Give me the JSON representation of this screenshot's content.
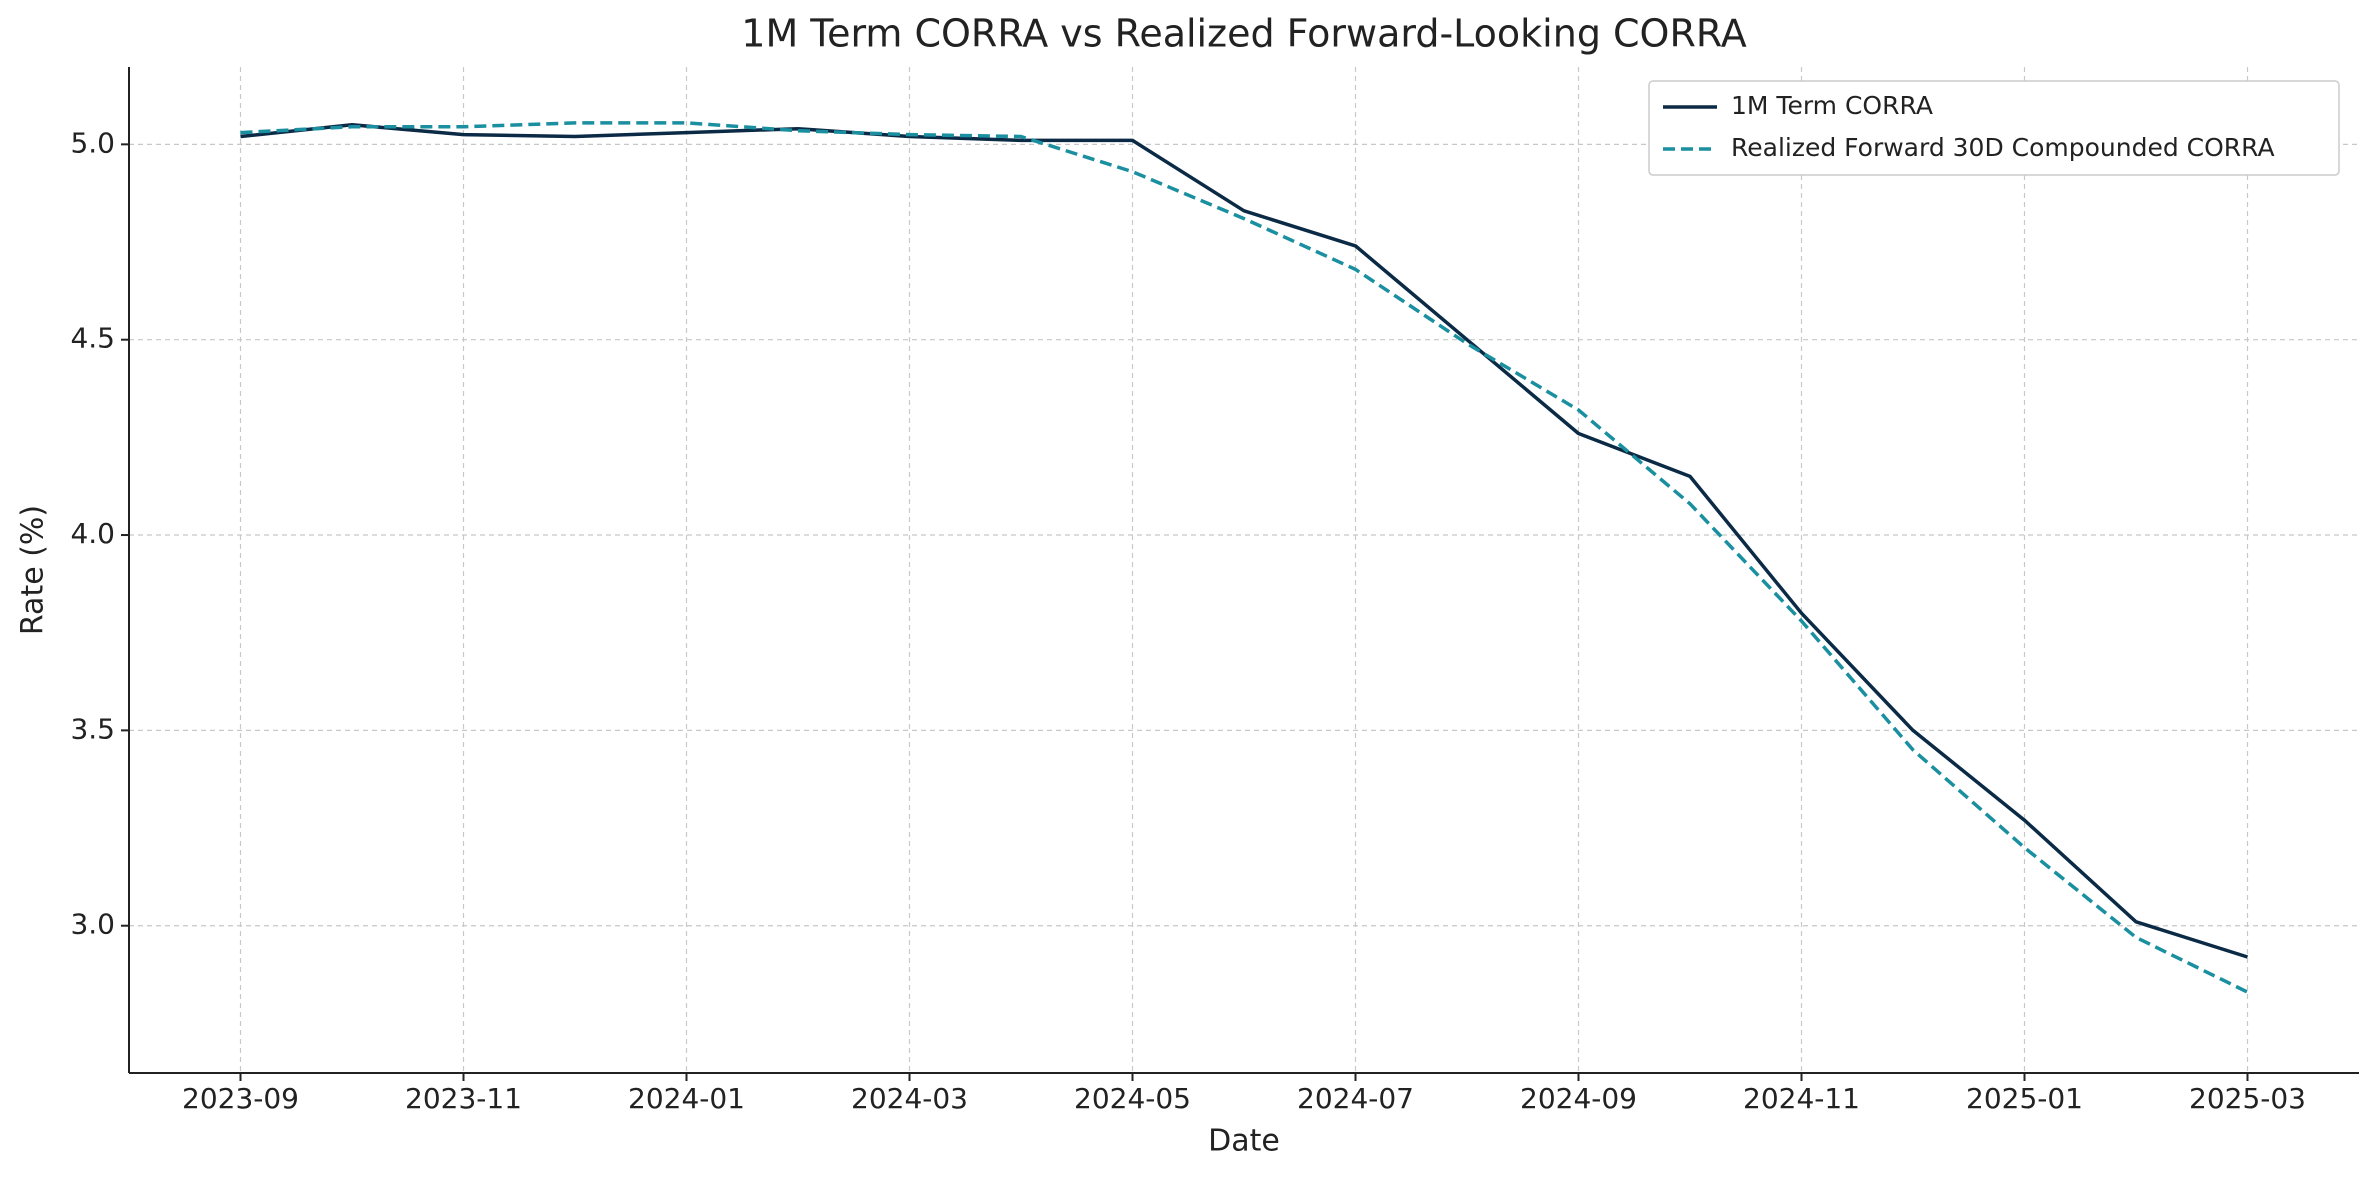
{
  "chart_data": {
    "type": "line",
    "title": "1M Term CORRA vs Realized Forward-Looking CORRA",
    "x_label": "Date",
    "y_label": "Rate (%)",
    "x": [
      "2023-09",
      "2023-10",
      "2023-11",
      "2023-12",
      "2024-01",
      "2024-02",
      "2024-03",
      "2024-04",
      "2024-05",
      "2024-06",
      "2024-07",
      "2024-08",
      "2024-09",
      "2024-10",
      "2024-11",
      "2024-12",
      "2025-01",
      "2025-02",
      "2025-03"
    ],
    "series": [
      {
        "name": "1M Term CORRA",
        "color": "#0b2a45",
        "dash": false,
        "values": [
          5.02,
          5.05,
          5.025,
          5.02,
          5.03,
          5.04,
          5.02,
          5.01,
          5.01,
          4.83,
          4.74,
          4.5,
          4.26,
          4.15,
          3.8,
          3.5,
          3.27,
          3.01,
          2.92
        ]
      },
      {
        "name": "Realized Forward 30D Compounded CORRA",
        "color": "#1a8fa0",
        "dash": true,
        "values": [
          5.03,
          5.045,
          5.045,
          5.055,
          5.055,
          5.035,
          5.025,
          5.02,
          4.93,
          4.81,
          4.68,
          4.49,
          4.32,
          4.08,
          3.78,
          3.45,
          3.2,
          2.97,
          2.83
        ]
      }
    ],
    "xlim": [
      "2023-08",
      "2025-04"
    ],
    "xticks": [
      "2023-09",
      "2023-11",
      "2024-01",
      "2024-03",
      "2024-05",
      "2024-07",
      "2024-09",
      "2024-11",
      "2025-01",
      "2025-03"
    ],
    "ylim": [
      2.623,
      5.198
    ],
    "yticks": [
      {
        "value": 3,
        "label": "3.0"
      },
      {
        "value": 3.5,
        "label": "3.5"
      },
      {
        "value": 4,
        "label": "4.0"
      },
      {
        "value": 4.5,
        "label": "4.5"
      },
      {
        "value": 5,
        "label": "5.0"
      }
    ],
    "grid": true,
    "legend": "upper right"
  }
}
